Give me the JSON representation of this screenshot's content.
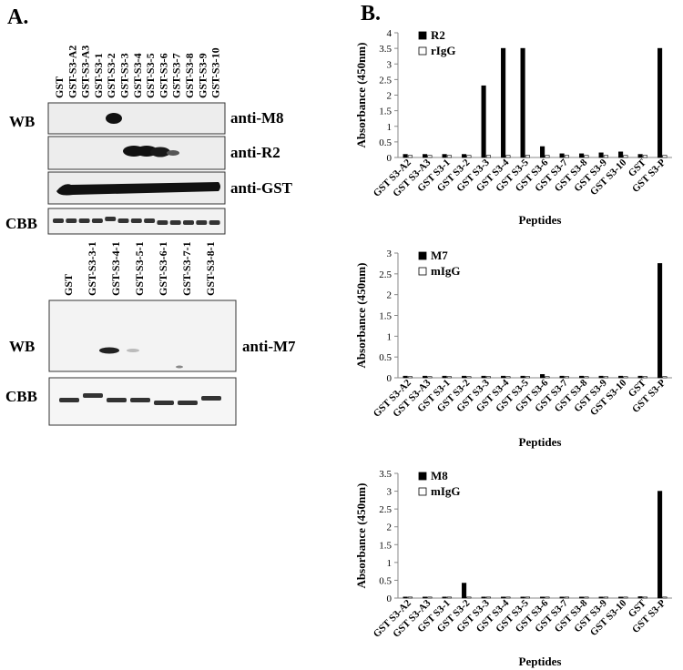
{
  "panel_letters": {
    "a": "A.",
    "b": "B."
  },
  "panel_a": {
    "top": {
      "wb_label": "WB",
      "cbb_label": "CBB",
      "lanes": [
        "GST",
        "GST-S3-A2",
        "GST-S3-A3",
        "GST-S3-1",
        "GST-S3-2",
        "GST-S3-3",
        "GST-S3-4",
        "GST-S3-5",
        "GST-S3-6",
        "GST-S3-7",
        "GST-S3-8",
        "GST-S3-9",
        "GST-S3-10"
      ],
      "blots": [
        {
          "antibody": "anti-M8"
        },
        {
          "antibody": "anti-R2"
        },
        {
          "antibody": "anti-GST"
        }
      ]
    },
    "bottom": {
      "wb_label": "WB",
      "cbb_label": "CBB",
      "lanes": [
        "GST",
        "GST-S3-3-1",
        "GST-S3-4-1",
        "GST-S3-5-1",
        "GST-S3-6-1",
        "GST-S3-7-1",
        "GST-S3-8-1"
      ],
      "blot": {
        "antibody": "anti-M7"
      }
    }
  },
  "chart_data": [
    {
      "type": "bar",
      "ylabel": "Absorbance (450nm)",
      "xlabel": "Peptides",
      "ylim": [
        0,
        4
      ],
      "yticks": [
        0,
        0.5,
        1,
        1.5,
        2,
        2.5,
        3,
        3.5,
        4
      ],
      "legend_position": "top-left",
      "categories": [
        "GST S3-A2",
        "GST S3-A3",
        "GST S3-1",
        "GST S3-2",
        "GST S3-3",
        "GST S3-4",
        "GST S3-5",
        "GST S3-6",
        "GST S3-7",
        "GST S3-8",
        "GST S3-9",
        "GST S3-10",
        "GST",
        "GST S3-P"
      ],
      "series": [
        {
          "name": "R2",
          "color": "#000000",
          "values": [
            0.1,
            0.1,
            0.1,
            0.1,
            2.3,
            3.5,
            3.5,
            0.35,
            0.12,
            0.12,
            0.15,
            0.18,
            0.1,
            3.5
          ]
        },
        {
          "name": "rIgG",
          "color": "#ffffff",
          "values": [
            0.07,
            0.07,
            0.07,
            0.07,
            0.07,
            0.07,
            0.07,
            0.07,
            0.07,
            0.07,
            0.07,
            0.07,
            0.07,
            0.07
          ]
        }
      ]
    },
    {
      "type": "bar",
      "ylabel": "Absorbance (450nm)",
      "xlabel": "Peptides",
      "ylim": [
        0,
        3
      ],
      "yticks": [
        0,
        0.5,
        1,
        1.5,
        2,
        2.5,
        3
      ],
      "legend_position": "top-left",
      "categories": [
        "GST S3-A2",
        "GST S3-A3",
        "GST S3-1",
        "GST S3-2",
        "GST S3-3",
        "GST S3-4",
        "GST S3-5",
        "GST S3-6",
        "GST S3-7",
        "GST S3-8",
        "GST S3-9",
        "GST S3-10",
        "GST",
        "GST S3-P"
      ],
      "series": [
        {
          "name": "M7",
          "color": "#000000",
          "values": [
            0.04,
            0.04,
            0.04,
            0.04,
            0.04,
            0.04,
            0.04,
            0.08,
            0.04,
            0.04,
            0.04,
            0.04,
            0.04,
            2.75
          ]
        },
        {
          "name": "mIgG",
          "color": "#ffffff",
          "values": [
            0.03,
            0.03,
            0.03,
            0.03,
            0.03,
            0.03,
            0.03,
            0.03,
            0.03,
            0.03,
            0.03,
            0.03,
            0.03,
            0.03
          ]
        }
      ]
    },
    {
      "type": "bar",
      "ylabel": "Absorbance (450nm)",
      "xlabel": "Peptides",
      "ylim": [
        0,
        3.5
      ],
      "yticks": [
        0,
        0.5,
        1,
        1.5,
        2,
        2.5,
        3,
        3.5
      ],
      "legend_position": "top-left",
      "categories": [
        "GST S3-A2",
        "GST S3-A3",
        "GST S3-1",
        "GST S3-2",
        "GST S3-3",
        "GST S3-4",
        "GST S3-5",
        "GST S3-6",
        "GST S3-7",
        "GST S3-8",
        "GST S3-9",
        "GST S3-10",
        "GST",
        "GST S3-P"
      ],
      "series": [
        {
          "name": "M8",
          "color": "#000000",
          "values": [
            0.03,
            0.03,
            0.03,
            0.42,
            0.03,
            0.03,
            0.03,
            0.03,
            0.03,
            0.03,
            0.03,
            0.03,
            0.04,
            3.0
          ]
        },
        {
          "name": "mIgG",
          "color": "#ffffff",
          "values": [
            0.03,
            0.03,
            0.03,
            0.03,
            0.03,
            0.03,
            0.03,
            0.03,
            0.03,
            0.03,
            0.03,
            0.03,
            0.03,
            0.03
          ]
        }
      ]
    }
  ]
}
